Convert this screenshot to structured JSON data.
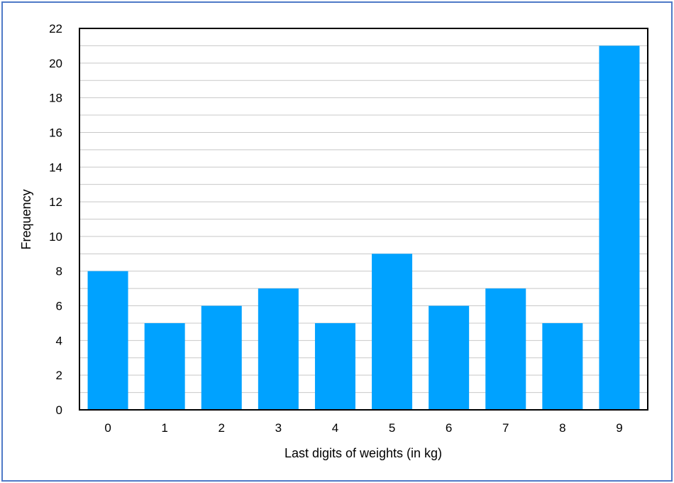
{
  "chart_data": {
    "type": "bar",
    "categories": [
      "0",
      "1",
      "2",
      "3",
      "4",
      "5",
      "6",
      "7",
      "8",
      "9"
    ],
    "values": [
      8,
      5,
      6,
      7,
      5,
      9,
      6,
      7,
      5,
      21
    ],
    "xlabel": "Last digits of weights (in kg)",
    "ylabel": "Frequency",
    "ylim": [
      0,
      22
    ],
    "yticks": [
      0,
      2,
      4,
      6,
      8,
      10,
      12,
      14,
      16,
      18,
      20,
      22
    ],
    "grid": true,
    "bar_color": "#00a2ff",
    "frame_color": "#4f7ac7"
  }
}
